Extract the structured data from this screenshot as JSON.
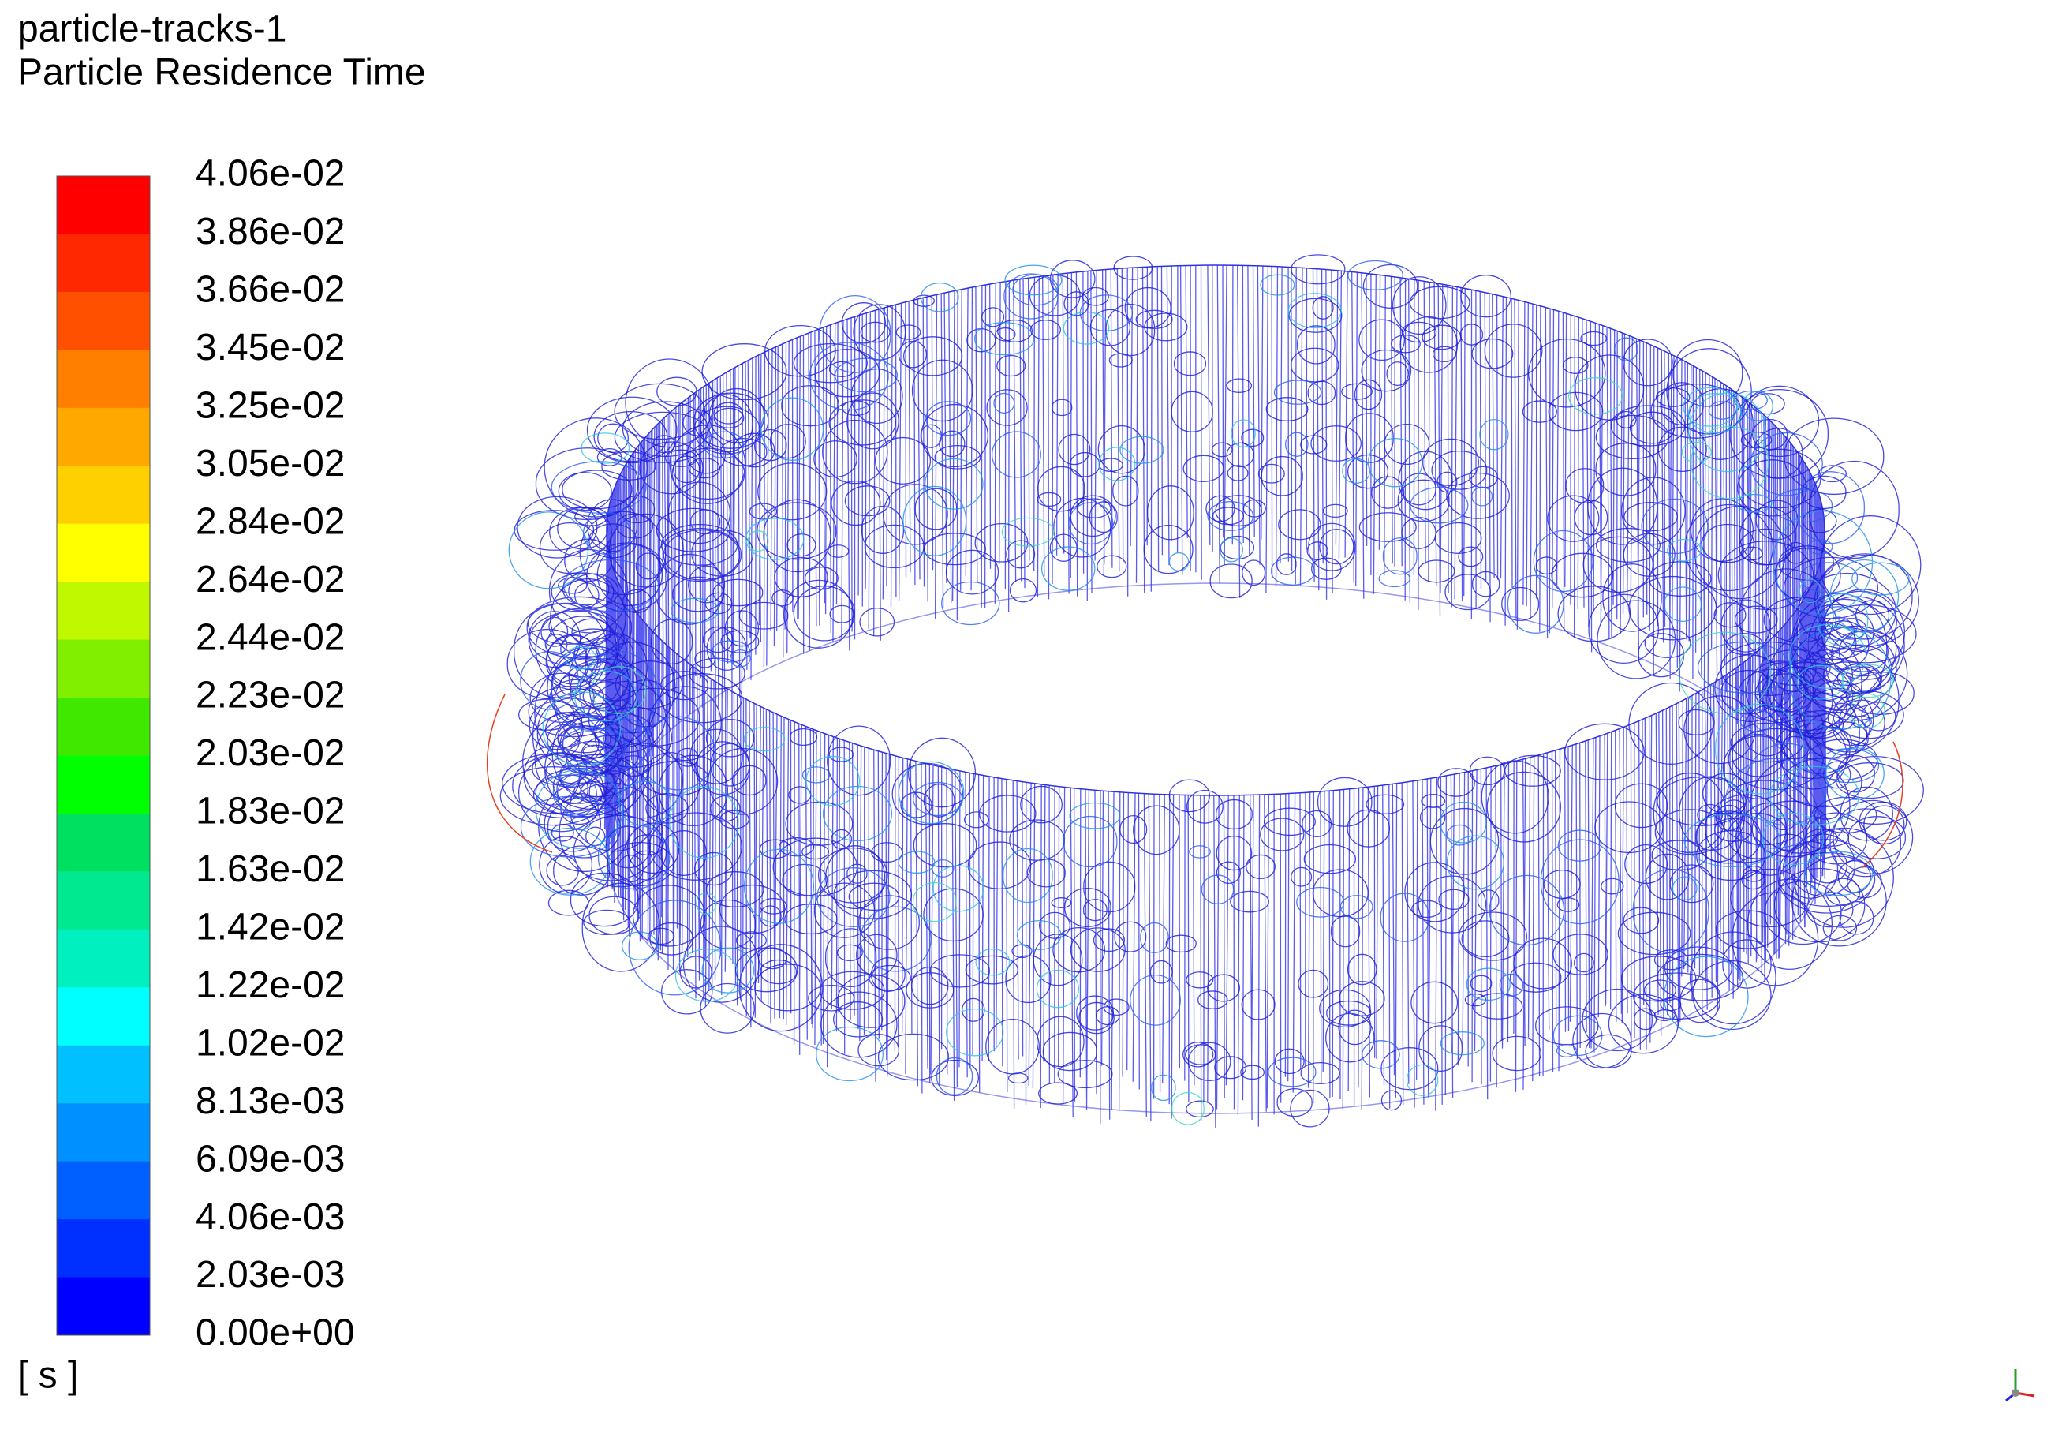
{
  "header": {
    "title": "particle-tracks-1",
    "subtitle": "Particle Residence Time"
  },
  "legend": {
    "labels": [
      "4.06e-02",
      "3.86e-02",
      "3.66e-02",
      "3.45e-02",
      "3.25e-02",
      "3.05e-02",
      "2.84e-02",
      "2.64e-02",
      "2.44e-02",
      "2.23e-02",
      "2.03e-02",
      "1.83e-02",
      "1.63e-02",
      "1.42e-02",
      "1.22e-02",
      "1.02e-02",
      "8.13e-03",
      "6.09e-03",
      "4.06e-03",
      "2.03e-03",
      "0.00e+00"
    ],
    "unit": "[ s ]"
  }
}
